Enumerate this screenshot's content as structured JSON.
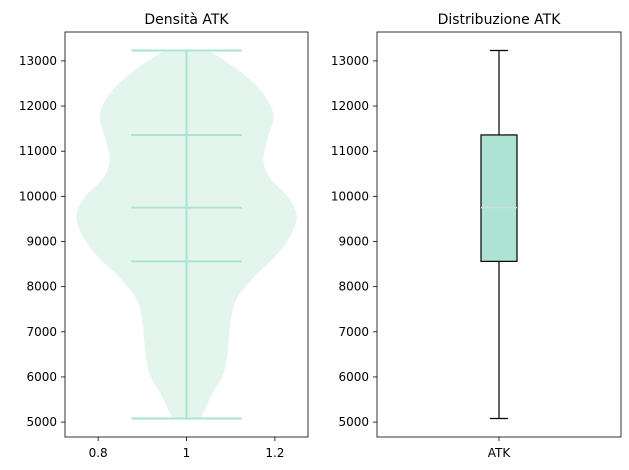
{
  "chart_data": [
    {
      "type": "violin",
      "title": "Densità ATK",
      "xlabel": "",
      "ylabel": "",
      "xlim": [
        0.725,
        1.275
      ],
      "ylim": [
        4670,
        13640
      ],
      "xticks": [
        0.8,
        1.0,
        1.2
      ],
      "yticks": [
        5000,
        6000,
        7000,
        8000,
        9000,
        10000,
        11000,
        12000,
        13000
      ],
      "position": 1.0,
      "halfwidth": 0.125,
      "min": 5080,
      "q1": 8560,
      "median": 9750,
      "q3": 11360,
      "max": 13230,
      "density_profile": [
        {
          "y": 5080,
          "w": 0.13
        },
        {
          "y": 5600,
          "w": 0.23
        },
        {
          "y": 6100,
          "w": 0.34
        },
        {
          "y": 6700,
          "w": 0.38
        },
        {
          "y": 7200,
          "w": 0.4
        },
        {
          "y": 7700,
          "w": 0.45
        },
        {
          "y": 8200,
          "w": 0.61
        },
        {
          "y": 8700,
          "w": 0.82
        },
        {
          "y": 9200,
          "w": 0.96
        },
        {
          "y": 9600,
          "w": 1.0
        },
        {
          "y": 10000,
          "w": 0.92
        },
        {
          "y": 10400,
          "w": 0.76
        },
        {
          "y": 10800,
          "w": 0.7
        },
        {
          "y": 11300,
          "w": 0.74
        },
        {
          "y": 11800,
          "w": 0.79
        },
        {
          "y": 12300,
          "w": 0.69
        },
        {
          "y": 12800,
          "w": 0.47
        },
        {
          "y": 13230,
          "w": 0.2
        }
      ],
      "fill_color": "#e4f5ee",
      "line_color": "#ade3d3"
    },
    {
      "type": "box",
      "title": "Distribuzione ATK",
      "xlabel": "",
      "ylabel": "",
      "categories": [
        "ATK"
      ],
      "ylim": [
        4670,
        13640
      ],
      "yticks": [
        5000,
        6000,
        7000,
        8000,
        9000,
        10000,
        11000,
        12000,
        13000
      ],
      "min": 5080,
      "q1": 8560,
      "median": 9750,
      "q3": 11360,
      "max": 13230,
      "box_color": "#ade3d3",
      "median_color": "#d9d9d9"
    }
  ]
}
